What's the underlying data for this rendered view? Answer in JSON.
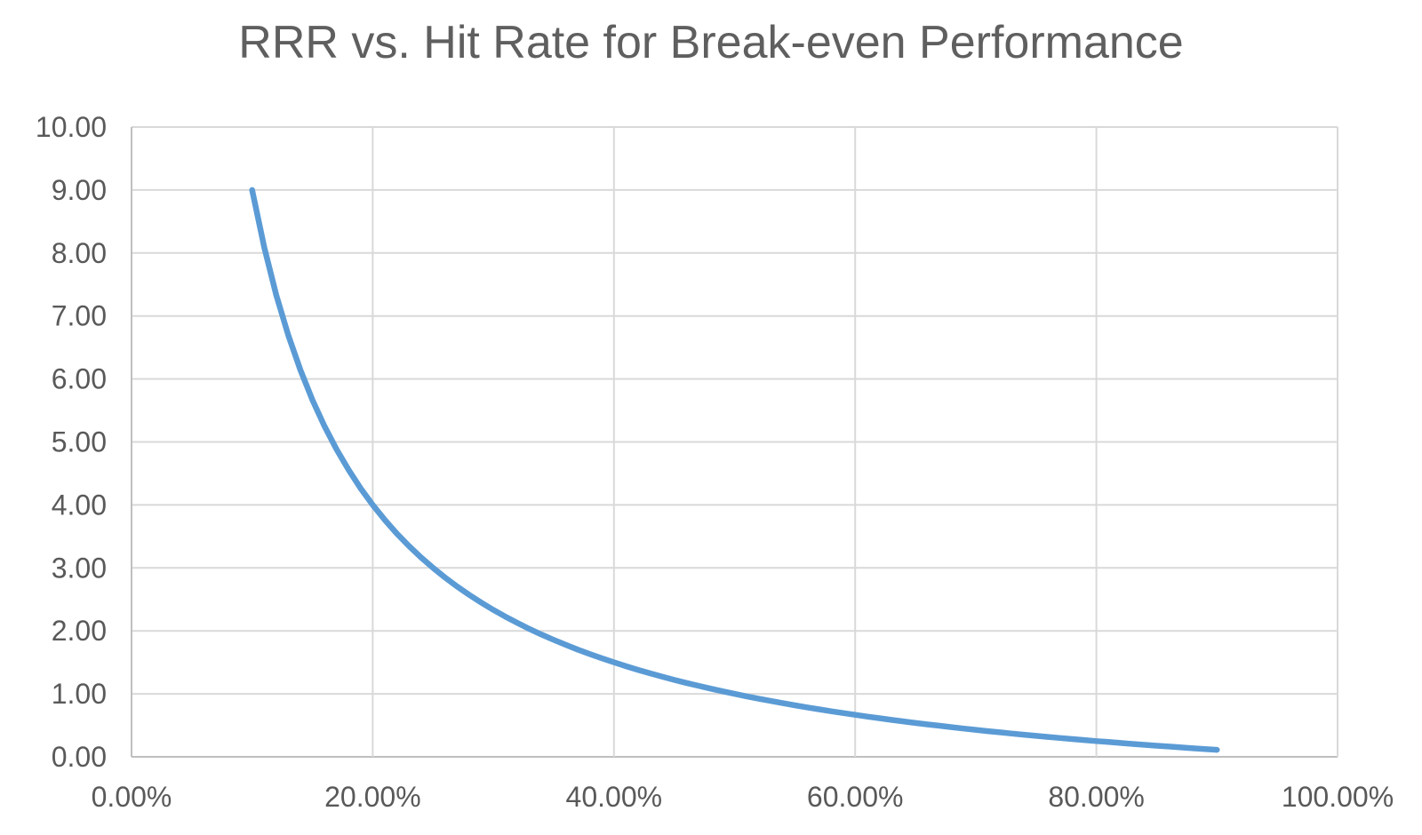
{
  "chart_data": {
    "type": "line",
    "title": "RRR vs. Hit Rate for Break-even Performance",
    "xlabel": "",
    "ylabel": "",
    "xlim": [
      0,
      100
    ],
    "ylim": [
      0,
      10
    ],
    "grid": true,
    "legend": "none",
    "x_unit": "percent",
    "x": [
      10,
      11,
      12,
      13,
      14,
      15,
      16,
      17,
      18,
      19,
      20,
      21,
      22,
      23,
      24,
      25,
      26,
      27,
      28,
      29,
      30,
      31,
      32,
      33,
      34,
      35,
      36,
      37,
      38,
      39,
      40,
      41,
      42,
      43,
      44,
      45,
      46,
      47,
      48,
      49,
      50,
      51,
      52,
      53,
      54,
      55,
      56,
      57,
      58,
      59,
      60,
      61,
      62,
      63,
      64,
      65,
      66,
      67,
      68,
      69,
      70,
      71,
      72,
      73,
      74,
      75,
      76,
      77,
      78,
      79,
      80,
      81,
      82,
      83,
      84,
      85,
      86,
      87,
      88,
      89,
      90
    ],
    "series": [
      {
        "name": "RRR",
        "values": [
          9.0,
          8.091,
          7.333,
          6.692,
          6.143,
          5.667,
          5.25,
          4.882,
          4.556,
          4.263,
          4.0,
          3.762,
          3.545,
          3.348,
          3.167,
          3.0,
          2.846,
          2.704,
          2.571,
          2.448,
          2.333,
          2.226,
          2.125,
          2.03,
          1.941,
          1.857,
          1.778,
          1.703,
          1.632,
          1.564,
          1.5,
          1.439,
          1.381,
          1.326,
          1.273,
          1.222,
          1.174,
          1.128,
          1.083,
          1.041,
          1.0,
          0.961,
          0.923,
          0.887,
          0.852,
          0.818,
          0.786,
          0.754,
          0.724,
          0.695,
          0.667,
          0.639,
          0.613,
          0.587,
          0.563,
          0.538,
          0.515,
          0.493,
          0.471,
          0.449,
          0.429,
          0.408,
          0.389,
          0.37,
          0.351,
          0.333,
          0.316,
          0.299,
          0.282,
          0.266,
          0.25,
          0.235,
          0.22,
          0.205,
          0.19,
          0.176,
          0.163,
          0.149,
          0.136,
          0.124,
          0.111
        ]
      }
    ],
    "x_ticks": {
      "values": [
        0,
        20,
        40,
        60,
        80,
        100
      ],
      "labels": [
        "0.00%",
        "20.00%",
        "40.00%",
        "60.00%",
        "80.00%",
        "100.00%"
      ]
    },
    "y_ticks": {
      "values": [
        0,
        1,
        2,
        3,
        4,
        5,
        6,
        7,
        8,
        9,
        10
      ],
      "labels": [
        "0.00",
        "1.00",
        "2.00",
        "3.00",
        "4.00",
        "5.00",
        "6.00",
        "7.00",
        "8.00",
        "9.00",
        "10.00"
      ]
    },
    "colors": {
      "line": "#5B9BD5",
      "gridline": "#D9D9D9",
      "axis": "#BFBFBF",
      "tick_text": "#595959",
      "title_text": "#5f5f5f",
      "background": "#ffffff"
    }
  }
}
